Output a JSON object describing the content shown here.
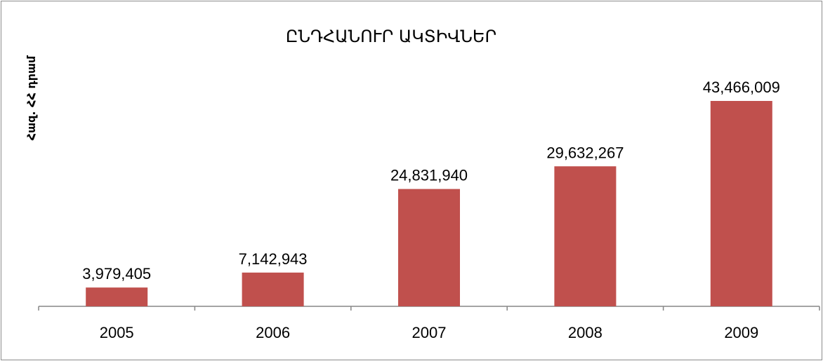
{
  "chart_data": {
    "type": "bar",
    "title": "ԸՆԴՀԱՆՈՒՐ ԱԿՏԻՎՆԵՐ",
    "ylabel": "Հազ. ՀՀ դրամ",
    "xlabel": "",
    "categories": [
      "2005",
      "2006",
      "2007",
      "2008",
      "2009"
    ],
    "values": [
      3979405,
      7142943,
      24831940,
      29632267,
      43466009
    ],
    "value_labels": [
      "3,979,405",
      "7,142,943",
      "24,831,940",
      "29,632,267",
      "43,466,009"
    ],
    "bar_color": "#c0504d",
    "grid": false,
    "legend": "none"
  }
}
